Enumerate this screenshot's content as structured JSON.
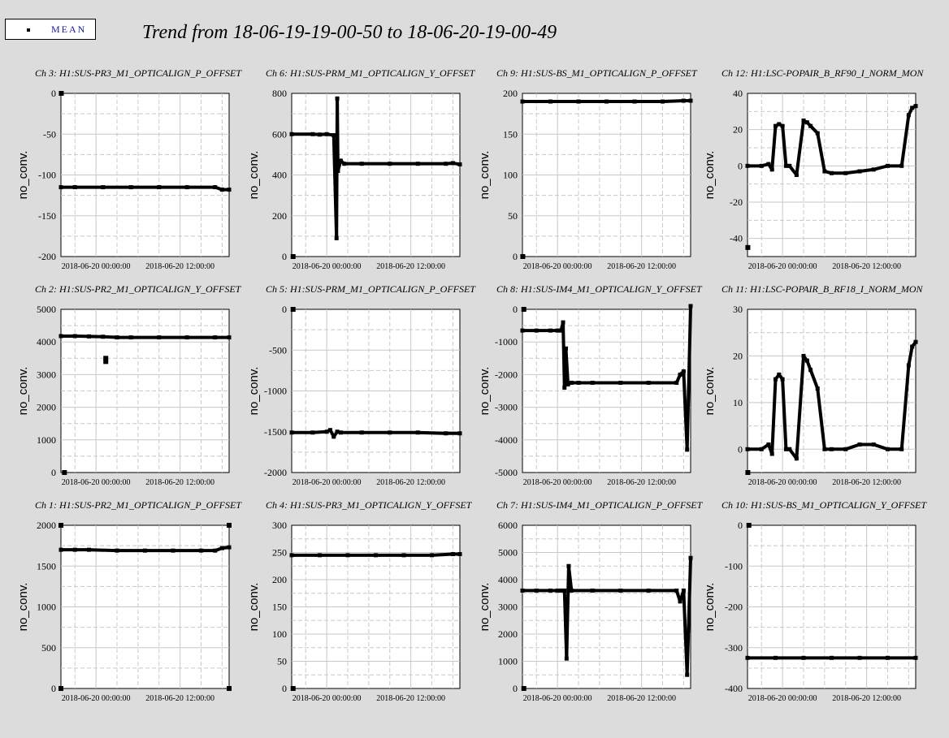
{
  "legend": {
    "label": "MEAN",
    "marker": "square-marker-icon"
  },
  "page_title": "Trend from 18-06-19-19-00-50 to 18-06-20-19-00-49",
  "colors": {
    "background": "#dcdcdc",
    "plot_bg": "#ffffff",
    "data": "#000000",
    "legend_text": "#1a1aa6",
    "grid": "#c8c8c8"
  },
  "chart_data": [
    {
      "type": "scatter",
      "title": "Ch 3: H1:SUS-PR3_M1_OPTICALIGN_P_OFFSET",
      "ylabel": "no_conv.",
      "ylim": [
        -200,
        0
      ],
      "yticks": [
        0,
        -50,
        -100,
        -150,
        -200
      ],
      "xticks": [
        "2018-06-20 00:00:00",
        "2018-06-20 12:00:00"
      ],
      "x": [
        0,
        2,
        6,
        10,
        14,
        18,
        22,
        23,
        24
      ],
      "values": [
        -115,
        -115,
        -115,
        -115,
        -115,
        -115,
        -115,
        -118,
        -118
      ],
      "outliers": [
        [
          0.05,
          0
        ]
      ]
    },
    {
      "type": "scatter",
      "title": "Ch 6: H1:SUS-PRM_M1_OPTICALIGN_Y_OFFSET",
      "ylabel": "no_conv.",
      "ylim": [
        0,
        800
      ],
      "yticks": [
        800,
        600,
        400,
        200,
        0
      ],
      "xticks": [
        "2018-06-20 00:00:00",
        "2018-06-20 12:00:00"
      ],
      "x": [
        0,
        3,
        4,
        5,
        6,
        6.4,
        6.5,
        6.6,
        7,
        7.5,
        10,
        14,
        18,
        22,
        23,
        24
      ],
      "values": [
        600,
        600,
        598,
        600,
        595,
        90,
        775,
        420,
        470,
        455,
        455,
        455,
        455,
        455,
        458,
        452
      ],
      "outliers": [
        [
          0.2,
          0
        ]
      ]
    },
    {
      "type": "scatter",
      "title": "Ch 9: H1:SUS-BS_M1_OPTICALIGN_P_OFFSET",
      "ylabel": "no_conv.",
      "ylim": [
        0,
        200
      ],
      "yticks": [
        200,
        150,
        100,
        50,
        0
      ],
      "xticks": [
        "2018-06-20 00:00:00",
        "2018-06-20 12:00:00"
      ],
      "x": [
        0,
        4,
        8,
        12,
        16,
        20,
        23,
        24
      ],
      "values": [
        190,
        190,
        190,
        190,
        190,
        190,
        191,
        191
      ],
      "outliers": [
        [
          0.05,
          0
        ]
      ]
    },
    {
      "type": "scatter",
      "title": "Ch 12: H1:LSC-POPAIR_B_RF90_I_NORM_MON",
      "ylabel": "no_conv.",
      "ylim": [
        -50,
        40
      ],
      "yticks": [
        40,
        20,
        0,
        -20,
        -40
      ],
      "xticks": [
        "2018-06-20 00:00:00",
        "2018-06-20 12:00:00"
      ],
      "x": [
        0,
        2,
        3,
        3.5,
        4,
        4.5,
        5,
        5.5,
        6,
        7,
        8,
        8.5,
        9,
        10,
        11,
        12,
        14,
        16,
        18,
        20,
        22,
        23,
        23.5,
        24
      ],
      "values": [
        0,
        0,
        1,
        -2,
        22,
        23,
        22,
        0,
        0,
        -5,
        25,
        24,
        22,
        18,
        -3,
        -4,
        -4,
        -3,
        -2,
        0,
        0,
        28,
        32,
        33
      ],
      "outliers": [
        [
          0.05,
          -45
        ]
      ]
    },
    {
      "type": "scatter",
      "title": "Ch 2: H1:SUS-PR2_M1_OPTICALIGN_Y_OFFSET",
      "ylabel": "no_conv.",
      "ylim": [
        0,
        5000
      ],
      "yticks": [
        5000,
        4000,
        3000,
        2000,
        1000,
        0
      ],
      "xticks": [
        "2018-06-20 00:00:00",
        "2018-06-20 12:00:00"
      ],
      "x": [
        0,
        2,
        4,
        6,
        8,
        10,
        14,
        18,
        22,
        24
      ],
      "values": [
        4180,
        4180,
        4170,
        4160,
        4140,
        4140,
        4140,
        4140,
        4140,
        4140
      ],
      "outliers": [
        [
          0.5,
          0
        ],
        [
          6.4,
          3500
        ],
        [
          6.4,
          3400
        ]
      ]
    },
    {
      "type": "scatter",
      "title": "Ch 5: H1:SUS-PRM_M1_OPTICALIGN_P_OFFSET",
      "ylabel": "no_conv.",
      "ylim": [
        -2000,
        0
      ],
      "yticks": [
        0,
        -500,
        -1000,
        -1500,
        -2000
      ],
      "xticks": [
        "2018-06-20 00:00:00",
        "2018-06-20 12:00:00"
      ],
      "x": [
        0,
        3,
        5,
        5.5,
        6,
        6.5,
        7,
        10,
        14,
        18,
        22,
        24
      ],
      "values": [
        -1510,
        -1510,
        -1500,
        -1480,
        -1560,
        -1500,
        -1510,
        -1510,
        -1510,
        -1510,
        -1520,
        -1520
      ],
      "outliers": [
        [
          0.2,
          0
        ]
      ]
    },
    {
      "type": "scatter",
      "title": "Ch 8: H1:SUS-IM4_M1_OPTICALIGN_Y_OFFSET",
      "ylabel": "no_conv.",
      "ylim": [
        -5000,
        0
      ],
      "yticks": [
        0,
        -1000,
        -2000,
        -3000,
        -4000,
        -5000
      ],
      "xticks": [
        "2018-06-20 00:00:00",
        "2018-06-20 12:00:00"
      ],
      "x": [
        0,
        2,
        4,
        5,
        5.5,
        5.8,
        6,
        6.2,
        6.5,
        7,
        8,
        10,
        14,
        18,
        22,
        22.5,
        23,
        23.5,
        24
      ],
      "values": [
        -650,
        -650,
        -650,
        -650,
        -650,
        -400,
        -2400,
        -1200,
        -2300,
        -2250,
        -2250,
        -2250,
        -2250,
        -2250,
        -2250,
        -2000,
        -1900,
        -4300,
        100
      ],
      "outliers": [
        [
          0.2,
          0
        ]
      ]
    },
    {
      "type": "scatter",
      "title": "Ch 11: H1:LSC-POPAIR_B_RF18_I_NORM_MON",
      "ylabel": "no_conv.",
      "ylim": [
        -5,
        30
      ],
      "yticks": [
        30,
        20,
        10,
        0
      ],
      "xticks": [
        "2018-06-20 00:00:00",
        "2018-06-20 12:00:00"
      ],
      "x": [
        0,
        2,
        3,
        3.5,
        4,
        4.5,
        5,
        5.5,
        6,
        7,
        8,
        8.5,
        9,
        10,
        11,
        12,
        14,
        16,
        18,
        20,
        22,
        23,
        23.5,
        24
      ],
      "values": [
        0,
        0,
        1,
        -1,
        15,
        16,
        15,
        0,
        0,
        -2,
        20,
        19,
        17,
        13,
        0,
        0,
        0,
        1,
        1,
        0,
        0,
        18,
        22,
        23
      ],
      "outliers": [
        [
          0.05,
          -5
        ]
      ]
    },
    {
      "type": "scatter",
      "title": "Ch 1: H1:SUS-PR2_M1_OPTICALIGN_P_OFFSET",
      "ylabel": "no_conv.",
      "ylim": [
        0,
        2000
      ],
      "yticks": [
        2000,
        1500,
        1000,
        500,
        0
      ],
      "xticks": [
        "2018-06-20 00:00:00",
        "2018-06-20 12:00:00"
      ],
      "x": [
        0,
        2,
        4,
        8,
        12,
        16,
        20,
        22,
        23,
        24
      ],
      "values": [
        1700,
        1700,
        1700,
        1690,
        1690,
        1690,
        1690,
        1690,
        1720,
        1730
      ],
      "outliers": [
        [
          0,
          2000
        ],
        [
          0,
          0
        ],
        [
          24,
          2000
        ],
        [
          24,
          0
        ]
      ]
    },
    {
      "type": "scatter",
      "title": "Ch 4: H1:SUS-PR3_M1_OPTICALIGN_Y_OFFSET",
      "ylabel": "no_conv.",
      "ylim": [
        0,
        300
      ],
      "yticks": [
        300,
        250,
        200,
        150,
        100,
        50,
        0
      ],
      "xticks": [
        "2018-06-20 00:00:00",
        "2018-06-20 12:00:00"
      ],
      "x": [
        0,
        4,
        8,
        12,
        16,
        20,
        23,
        24
      ],
      "values": [
        245,
        245,
        245,
        245,
        245,
        245,
        247,
        247
      ],
      "outliers": [
        [
          0.2,
          0
        ]
      ]
    },
    {
      "type": "scatter",
      "title": "Ch 7: H1:SUS-IM4_M1_OPTICALIGN_P_OFFSET",
      "ylabel": "no_conv.",
      "ylim": [
        0,
        6000
      ],
      "yticks": [
        6000,
        5000,
        4000,
        3000,
        2000,
        1000,
        0
      ],
      "xticks": [
        "2018-06-20 00:00:00",
        "2018-06-20 12:00:00"
      ],
      "x": [
        0,
        2,
        4,
        5,
        5.5,
        6,
        6.3,
        6.6,
        7,
        10,
        14,
        18,
        22,
        22.5,
        23,
        23.5,
        24
      ],
      "values": [
        3600,
        3600,
        3600,
        3600,
        3600,
        3600,
        1100,
        4500,
        3600,
        3600,
        3600,
        3600,
        3600,
        3200,
        3600,
        500,
        4800
      ],
      "outliers": [
        [
          0.2,
          0
        ]
      ]
    },
    {
      "type": "scatter",
      "title": "Ch 10: H1:SUS-BS_M1_OPTICALIGN_Y_OFFSET",
      "ylabel": "no_conv.",
      "ylim": [
        -400,
        0
      ],
      "yticks": [
        0,
        -100,
        -200,
        -300,
        -400
      ],
      "xticks": [
        "2018-06-20 00:00:00",
        "2018-06-20 12:00:00"
      ],
      "x": [
        0,
        4,
        8,
        12,
        16,
        20,
        24
      ],
      "values": [
        -325,
        -325,
        -325,
        -325,
        -325,
        -325,
        -325
      ],
      "outliers": [
        [
          0.2,
          0
        ]
      ]
    }
  ]
}
